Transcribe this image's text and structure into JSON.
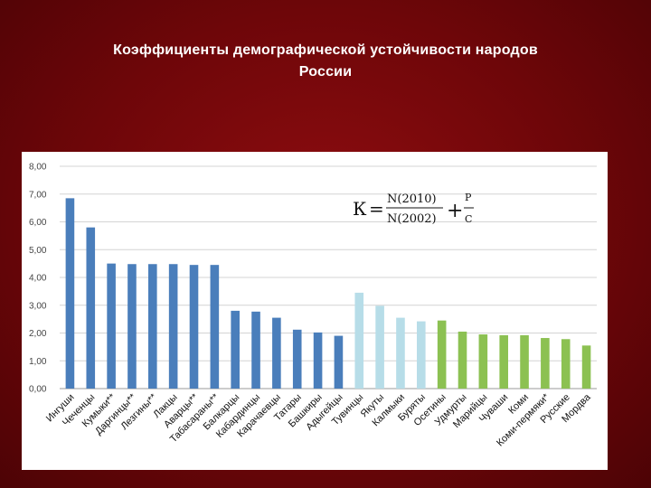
{
  "page": {
    "title_line1": "Коэффициенты демографической устойчивости народов",
    "title_line2": "России"
  },
  "formula": {
    "lhs": "К",
    "eq": "=",
    "num": "N(2010)",
    "den": "N(2002)",
    "plus": "+",
    "p": "P",
    "c": "C"
  },
  "chart_data": {
    "type": "bar",
    "title": "Коэффициенты демографической устойчивости народов России",
    "xlabel": "",
    "ylabel": "",
    "ylim": [
      0,
      8
    ],
    "y_ticks": [
      "0,00",
      "1,00",
      "2,00",
      "3,00",
      "4,00",
      "5,00",
      "6,00",
      "7,00",
      "8,00"
    ],
    "grid": true,
    "legend": "none",
    "categories": [
      "Ингуши",
      "Чеченцы",
      "Кумыки**",
      "Даргинцы**",
      "Лезгины**",
      "Лакцы",
      "Аварцы**",
      "Табасараны**",
      "Балкарцы",
      "Кабардинцы",
      "Карачаевцы",
      "Татары",
      "Башкиры",
      "Адыгейцы",
      "Тувинцы",
      "Якуты",
      "Калмыки",
      "Буряты",
      "Осетины",
      "Удмурты",
      "Марийцы",
      "Чуваши",
      "Коми",
      "Коми-пермяки*",
      "Русские",
      "Мордва"
    ],
    "values": [
      6.85,
      5.8,
      4.5,
      4.48,
      4.48,
      4.48,
      4.45,
      4.45,
      2.8,
      2.77,
      2.55,
      2.12,
      2.02,
      1.9,
      3.45,
      2.98,
      2.55,
      2.42,
      2.45,
      2.05,
      1.95,
      1.92,
      1.92,
      1.82,
      1.78,
      1.55
    ],
    "groups": [
      0,
      0,
      0,
      0,
      0,
      0,
      0,
      0,
      0,
      0,
      0,
      0,
      0,
      0,
      1,
      1,
      1,
      1,
      2,
      2,
      2,
      2,
      2,
      2,
      2,
      2
    ],
    "group_colors": [
      "#4a7ebb",
      "#b7dde8",
      "#8cc152"
    ]
  }
}
